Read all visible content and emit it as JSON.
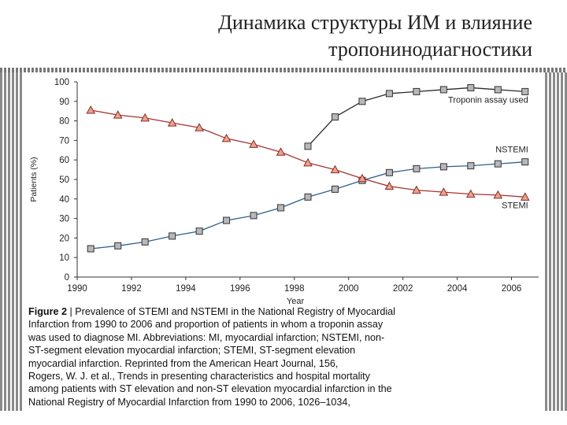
{
  "slide": {
    "title_line1": "Динамика структуры ИМ и влияние",
    "title_line2": "тропонинодиагностики"
  },
  "chart_data": {
    "type": "line",
    "xlabel": "Year",
    "ylabel": "Patients (%)",
    "xlim": [
      1990,
      2007
    ],
    "ylim": [
      0,
      100
    ],
    "x_ticks": [
      1990,
      1992,
      1994,
      1996,
      1998,
      2000,
      2002,
      2004,
      2006
    ],
    "y_ticks": [
      0,
      10,
      20,
      30,
      40,
      50,
      60,
      70,
      80,
      90,
      100
    ],
    "grid": false,
    "series": [
      {
        "name": "Troponin assay used",
        "marker": "square",
        "color": "#2a2a2a",
        "x": [
          1998.5,
          1999.5,
          2000.5,
          2001.5,
          2002.5,
          2003.5,
          2004.5,
          2005.5,
          2006.5
        ],
        "values": [
          67,
          82,
          90,
          94,
          95,
          96,
          97,
          96,
          95
        ]
      },
      {
        "name": "NSTEMI",
        "marker": "square",
        "color": "#2e5f8f",
        "x": [
          1990.5,
          1991.5,
          1992.5,
          1993.5,
          1994.5,
          1995.5,
          1996.5,
          1997.5,
          1998.5,
          1999.5,
          2000.5,
          2001.5,
          2002.5,
          2003.5,
          2004.5,
          2005.5,
          2006.5
        ],
        "values": [
          14.5,
          16,
          18,
          21,
          23.5,
          29,
          31.5,
          35.5,
          41,
          45,
          49.5,
          53.5,
          55.5,
          56.5,
          57,
          58,
          59
        ]
      },
      {
        "name": "STEMI",
        "marker": "triangle",
        "color": "#a83232",
        "x": [
          1990.5,
          1991.5,
          1992.5,
          1993.5,
          1994.5,
          1995.5,
          1996.5,
          1997.5,
          1998.5,
          1999.5,
          2000.5,
          2001.5,
          2002.5,
          2003.5,
          2004.5,
          2005.5,
          2006.5
        ],
        "values": [
          85.5,
          83,
          81.5,
          79,
          76.5,
          71,
          68,
          64,
          58.5,
          55,
          50.5,
          46.5,
          44.5,
          43.5,
          42.5,
          42,
          41
        ]
      }
    ]
  },
  "caption": {
    "label": "Figure 2",
    "lines": [
      " | Prevalence of STEMI and NSTEMI in the National Registry of Myocardial",
      "Infarction from 1990 to 2006 and proportion of patients in whom a troponin assay",
      "was used to diagnose MI. Abbreviations: MI, myocardial infarction; NSTEMI, non-",
      "ST-segment elevation myocardial infarction; STEMI, ST-segment elevation",
      "myocardial infarction. Reprinted from the American Heart Journal, 156,",
      "Rogers, W. J. et al., Trends in presenting characteristics and hospital mortality",
      "among patients with ST elevation and non-ST elevation myocardial infarction in the",
      "National Registry of Myocardial Infarction from 1990 to 2006, 1026–1034,"
    ]
  }
}
